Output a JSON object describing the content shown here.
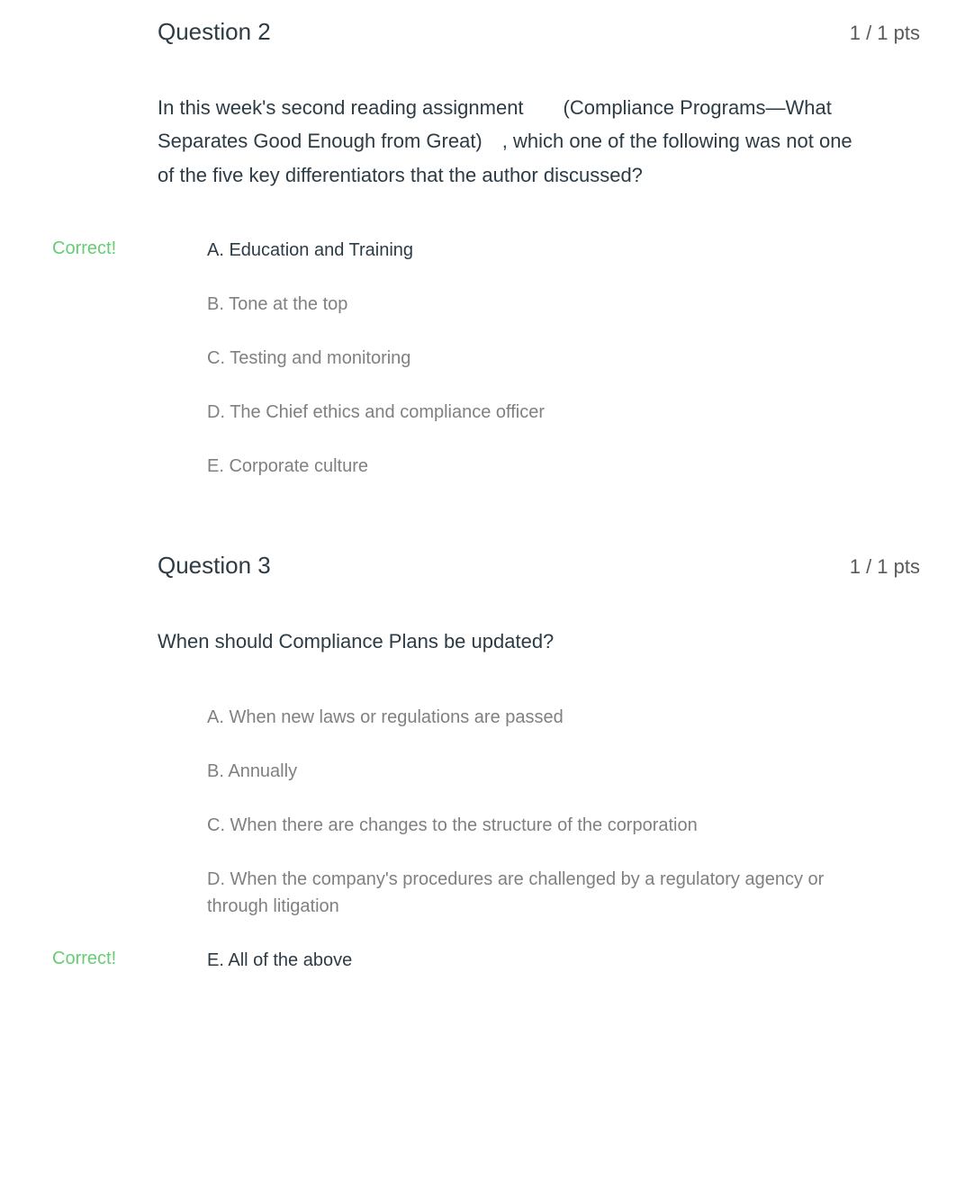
{
  "colors": {
    "background": "#ffffff",
    "text_primary": "#2d3b45",
    "text_secondary": "#808080",
    "text_points": "#595959",
    "correct_green": "#00ac18"
  },
  "typography": {
    "title_fontsize": 26,
    "prompt_fontsize": 22,
    "answer_fontsize": 20,
    "points_fontsize": 22,
    "correct_fontsize": 20,
    "font_family": "Helvetica Neue"
  },
  "layout": {
    "left_margin": 135,
    "answer_indent": 55,
    "question_spacing": 80
  },
  "questions": [
    {
      "title": "Question 2",
      "points": "1 / 1 pts",
      "prompt": "In this week's second reading assignment  (Compliance Programs—What Separates Good Enough from Great) , which one of the following was not one of the five key differentiators that the author discussed?",
      "answers": [
        {
          "text": "A. Education and Training",
          "selected": true,
          "correct_label": "Correct!"
        },
        {
          "text": "B. Tone at the top",
          "selected": false,
          "correct_label": ""
        },
        {
          "text": "C. Testing and monitoring",
          "selected": false,
          "correct_label": ""
        },
        {
          "text": "D. The Chief ethics and compliance officer",
          "selected": false,
          "correct_label": ""
        },
        {
          "text": "E. Corporate culture",
          "selected": false,
          "correct_label": ""
        }
      ]
    },
    {
      "title": "Question 3",
      "points": "1 / 1 pts",
      "prompt": "When should Compliance Plans be updated?",
      "answers": [
        {
          "text": "A. When new laws or regulations are passed",
          "selected": false,
          "correct_label": ""
        },
        {
          "text": "B. Annually",
          "selected": false,
          "correct_label": ""
        },
        {
          "text": "C. When there are changes to the structure of the corporation",
          "selected": false,
          "correct_label": ""
        },
        {
          "text": "D. When the company's procedures are challenged by a regulatory agency or through litigation",
          "selected": false,
          "correct_label": ""
        },
        {
          "text": "E. All of the above",
          "selected": true,
          "correct_label": "Correct!"
        }
      ]
    }
  ]
}
